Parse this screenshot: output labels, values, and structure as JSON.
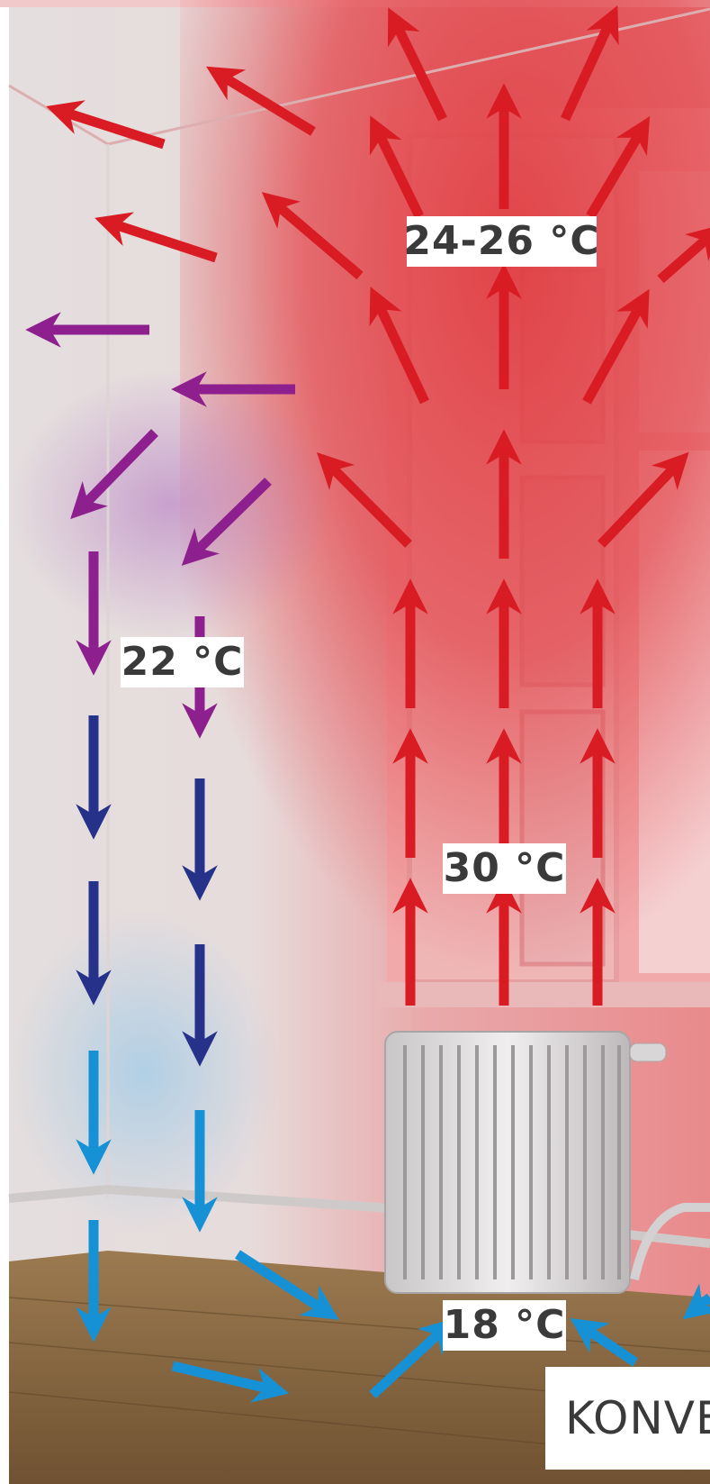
{
  "labels": {
    "ceiling_temp": "24-26 °C",
    "wall_temp": "22 °C",
    "radiator_temp": "30 °C",
    "floor_temp": "18 °C",
    "caption": "KONVE"
  },
  "colors": {
    "hot": "#d91c24",
    "mid": "#8e1f8e",
    "cool": "#26328a",
    "cold": "#1691d6",
    "wall_warm": "#e35a5e",
    "wall_neutral": "#e9e4e4",
    "floor": "#8a6a40"
  },
  "icons": {
    "hot_arrows": "arrow-icon",
    "cold_arrows": "arrow-icon",
    "radiator": "radiator-icon",
    "window": "window-icon"
  }
}
